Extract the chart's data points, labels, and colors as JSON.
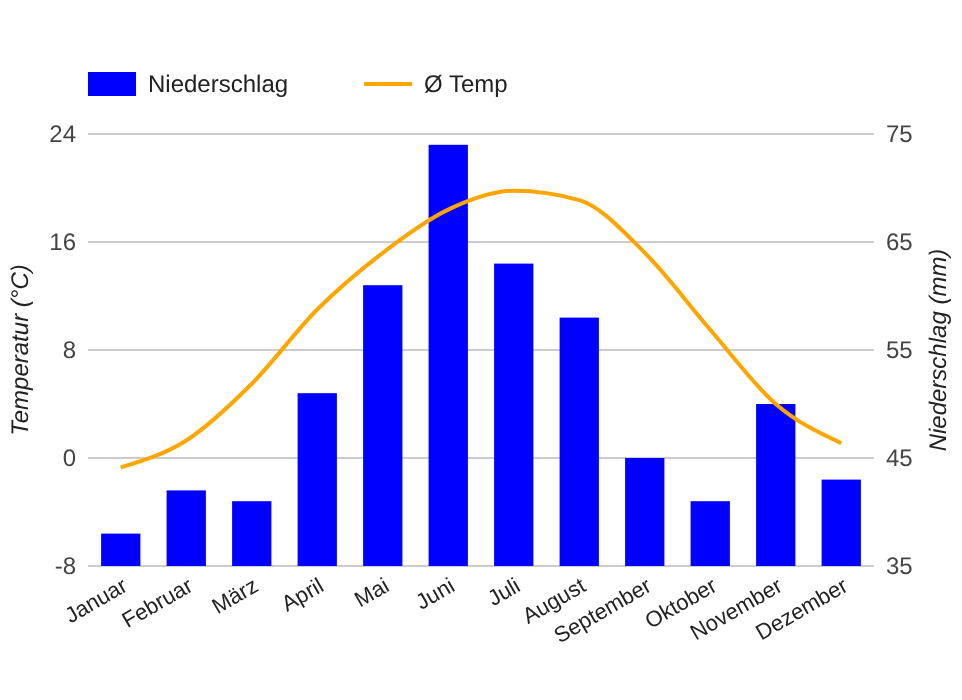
{
  "chart_data": {
    "type": "bar",
    "categories": [
      "Januar",
      "Februar",
      "März",
      "April",
      "Mai",
      "Juni",
      "Juli",
      "August",
      "September",
      "Oktober",
      "November",
      "Dezember"
    ],
    "series": [
      {
        "name": "Niederschlag",
        "axis": "y2",
        "color": "#0000ff",
        "values": [
          38,
          42,
          41,
          51,
          61,
          74,
          63,
          58,
          45,
          41,
          50,
          43
        ]
      },
      {
        "name": "Ø Temp",
        "type": "line",
        "color": "#ffa500",
        "values": [
          -0.7,
          1.3,
          5.5,
          11,
          15.2,
          18.4,
          19.8,
          19.1,
          15.2,
          9.5,
          4,
          1.1
        ]
      }
    ],
    "ylabel": "Temperatur (°C)",
    "y2label": "Niederschlag (mm)",
    "ylim": [
      -8,
      24
    ],
    "yticks": [
      -8,
      0,
      8,
      16,
      24
    ],
    "y2lim": [
      35,
      75
    ],
    "y2ticks": [
      35,
      45,
      55,
      65,
      75
    ],
    "grid": "y",
    "legend": "top left",
    "marker": "none"
  }
}
